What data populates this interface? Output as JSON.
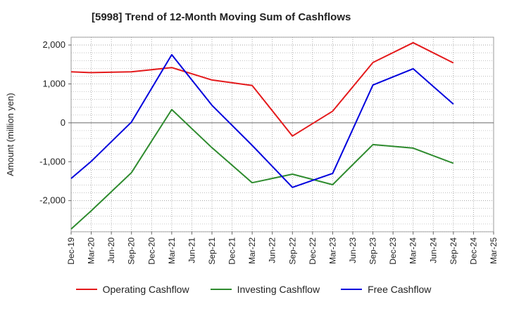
{
  "chart_data": {
    "type": "line",
    "title": "[5998]  Trend of 12-Month Moving Sum of Cashflows",
    "xlabel": "",
    "ylabel": "Amount (million yen)",
    "ylim": [
      -2800,
      2200
    ],
    "yticks": [
      2000,
      1000,
      0,
      -1000,
      -2000
    ],
    "ytick_labels": [
      "2,000",
      "1,000",
      "0",
      "-1,000",
      "-2,000"
    ],
    "categories": [
      "Dec-19",
      "Mar-20",
      "Jun-20",
      "Sep-20",
      "Dec-20",
      "Mar-21",
      "Jun-21",
      "Sep-21",
      "Dec-21",
      "Mar-22",
      "Jun-22",
      "Sep-22",
      "Dec-22",
      "Mar-23",
      "Jun-23",
      "Sep-23",
      "Dec-23",
      "Mar-24",
      "Jun-24",
      "Sep-24",
      "Dec-24",
      "Mar-25"
    ],
    "grid": true,
    "legend_position": "bottom",
    "series": [
      {
        "name": "Operating Cashflow",
        "color": "#e41a1c",
        "points": [
          [
            "Dec-19",
            1310
          ],
          [
            "Mar-20",
            1290
          ],
          [
            "Sep-20",
            1310
          ],
          [
            "Mar-21",
            1420
          ],
          [
            "Sep-21",
            1100
          ],
          [
            "Mar-22",
            960
          ],
          [
            "Sep-22",
            -340
          ],
          [
            "Mar-23",
            300
          ],
          [
            "Sep-23",
            1550
          ],
          [
            "Mar-24",
            2060
          ],
          [
            "Sep-24",
            1540
          ]
        ]
      },
      {
        "name": "Investing Cashflow",
        "color": "#2e8b2e",
        "points": [
          [
            "Dec-19",
            -2730
          ],
          [
            "Mar-20",
            -2260
          ],
          [
            "Sep-20",
            -1280
          ],
          [
            "Mar-21",
            340
          ],
          [
            "Sep-21",
            -640
          ],
          [
            "Mar-22",
            -1540
          ],
          [
            "Sep-22",
            -1320
          ],
          [
            "Mar-23",
            -1590
          ],
          [
            "Sep-23",
            -560
          ],
          [
            "Mar-24",
            -650
          ],
          [
            "Sep-24",
            -1040
          ]
        ]
      },
      {
        "name": "Free Cashflow",
        "color": "#0000dd",
        "points": [
          [
            "Dec-19",
            -1430
          ],
          [
            "Mar-20",
            -990
          ],
          [
            "Sep-20",
            20
          ],
          [
            "Mar-21",
            1750
          ],
          [
            "Sep-21",
            450
          ],
          [
            "Mar-22",
            -580
          ],
          [
            "Sep-22",
            -1660
          ],
          [
            "Mar-23",
            -1300
          ],
          [
            "Sep-23",
            970
          ],
          [
            "Mar-24",
            1390
          ],
          [
            "Sep-24",
            480
          ]
        ]
      }
    ]
  }
}
